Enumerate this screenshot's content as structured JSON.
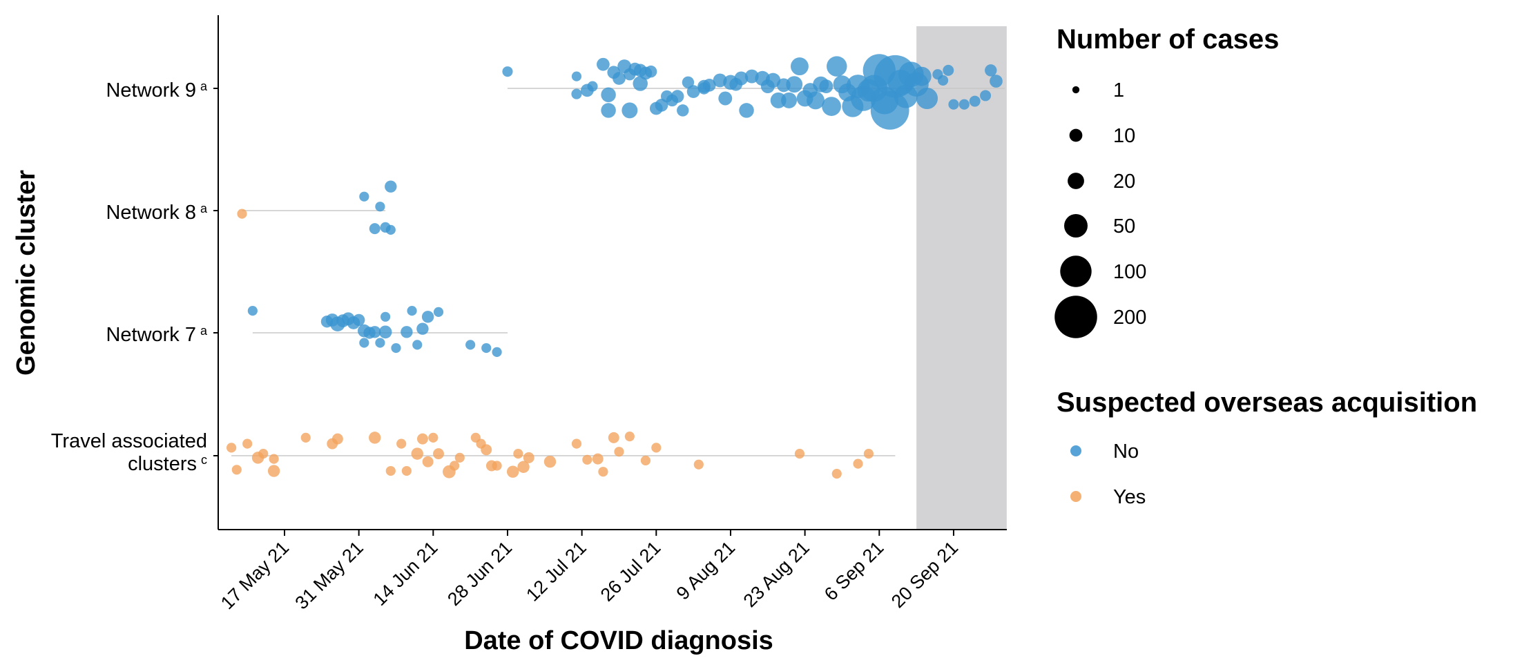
{
  "chart_data": {
    "type": "scatter",
    "xlabel": "Date of COVID diagnosis",
    "ylabel": "Genomic cluster",
    "x_ticks": [
      "17 May 21",
      "31 May 21",
      "14 Jun 21",
      "28 Jun 21",
      "12 Jul 21",
      "26 Jul 21",
      "9 Aug 21",
      "23 Aug 21",
      "6 Sep 21",
      "20 Sep 21"
    ],
    "xlim": [
      "2021-05-05",
      "2021-10-01"
    ],
    "categories": [
      {
        "label": "Network 9",
        "superscript": "a"
      },
      {
        "label": "Network 8",
        "superscript": "a"
      },
      {
        "label": "Network 7",
        "superscript": "a"
      },
      {
        "label": "Travel associated clusters",
        "superscript": "c"
      }
    ],
    "shaded_region": {
      "start": "2021-09-13",
      "end": "2021-09-30",
      "color": "#d3d3d5"
    },
    "size_legend": {
      "title": "Number of cases",
      "entries": [
        {
          "label": "1",
          "value": 1
        },
        {
          "label": "10",
          "value": 10
        },
        {
          "label": "20",
          "value": 20
        },
        {
          "label": "50",
          "value": 50
        },
        {
          "label": "100",
          "value": 100
        },
        {
          "label": "200",
          "value": 200
        }
      ]
    },
    "color_legend": {
      "title": "Suspected overseas acquisition",
      "entries": [
        {
          "label": "No",
          "color": "#3a93d0"
        },
        {
          "label": "Yes",
          "color": "#f2a35b"
        }
      ]
    },
    "series": [
      {
        "category": "Network 9",
        "acquisition": "No",
        "range": [
          "2021-06-28",
          "2021-09-30"
        ],
        "points": [
          [
            "2021-06-28",
            0.42,
            5
          ],
          [
            "2021-07-11",
            0.3,
            4
          ],
          [
            "2021-07-11",
            -0.14,
            5
          ],
          [
            "2021-07-13",
            -0.05,
            10
          ],
          [
            "2021-07-14",
            0.05,
            5
          ],
          [
            "2021-07-16",
            0.6,
            10
          ],
          [
            "2021-07-17",
            -0.16,
            15
          ],
          [
            "2021-07-17",
            -0.55,
            15
          ],
          [
            "2021-07-18",
            0.4,
            10
          ],
          [
            "2021-07-19",
            0.25,
            10
          ],
          [
            "2021-07-20",
            0.55,
            12
          ],
          [
            "2021-07-21",
            -0.55,
            18
          ],
          [
            "2021-07-21",
            0.35,
            8
          ],
          [
            "2021-07-22",
            0.48,
            10
          ],
          [
            "2021-07-23",
            0.12,
            15
          ],
          [
            "2021-07-23",
            0.45,
            10
          ],
          [
            "2021-07-24",
            0.38,
            10
          ],
          [
            "2021-07-25",
            0.42,
            8
          ],
          [
            "2021-07-26",
            -0.5,
            10
          ],
          [
            "2021-07-27",
            -0.42,
            10
          ],
          [
            "2021-07-28",
            -0.2,
            8
          ],
          [
            "2021-07-29",
            -0.3,
            8
          ],
          [
            "2021-07-30",
            -0.2,
            10
          ],
          [
            "2021-07-31",
            -0.55,
            8
          ],
          [
            "2021-08-01",
            0.15,
            8
          ],
          [
            "2021-08-02",
            -0.08,
            10
          ],
          [
            "2021-08-04",
            0.05,
            10
          ],
          [
            "2021-08-04",
            0.0,
            8
          ],
          [
            "2021-08-05",
            0.08,
            10
          ],
          [
            "2021-08-07",
            0.2,
            12
          ],
          [
            "2021-08-08",
            -0.25,
            12
          ],
          [
            "2021-08-09",
            0.15,
            15
          ],
          [
            "2021-08-10",
            0.1,
            10
          ],
          [
            "2021-08-11",
            0.25,
            12
          ],
          [
            "2021-08-12",
            -0.55,
            15
          ],
          [
            "2021-08-13",
            0.3,
            12
          ],
          [
            "2021-08-15",
            0.25,
            15
          ],
          [
            "2021-08-16",
            0.05,
            12
          ],
          [
            "2021-08-17",
            0.2,
            15
          ],
          [
            "2021-08-18",
            -0.3,
            18
          ],
          [
            "2021-08-19",
            0.08,
            12
          ],
          [
            "2021-08-20",
            -0.3,
            18
          ],
          [
            "2021-08-21",
            0.1,
            20
          ],
          [
            "2021-08-22",
            0.55,
            25
          ],
          [
            "2021-08-23",
            -0.25,
            20
          ],
          [
            "2021-08-24",
            -0.05,
            15
          ],
          [
            "2021-08-25",
            -0.3,
            25
          ],
          [
            "2021-08-26",
            0.1,
            18
          ],
          [
            "2021-08-27",
            0.05,
            12
          ],
          [
            "2021-08-28",
            -0.45,
            30
          ],
          [
            "2021-08-29",
            0.55,
            35
          ],
          [
            "2021-08-30",
            0.1,
            25
          ],
          [
            "2021-08-31",
            -0.1,
            25
          ],
          [
            "2021-09-01",
            -0.45,
            40
          ],
          [
            "2021-09-02",
            0.05,
            50
          ],
          [
            "2021-09-03",
            -0.25,
            60
          ],
          [
            "2021-09-04",
            -0.05,
            45
          ],
          [
            "2021-09-05",
            0.0,
            70
          ],
          [
            "2021-09-06",
            0.45,
            110
          ],
          [
            "2021-09-07",
            -0.3,
            75
          ],
          [
            "2021-09-08",
            -0.55,
            160
          ],
          [
            "2021-09-09",
            0.3,
            200
          ],
          [
            "2021-09-10",
            0.15,
            60
          ],
          [
            "2021-09-11",
            -0.2,
            50
          ],
          [
            "2021-09-12",
            0.35,
            60
          ],
          [
            "2021-09-13",
            0.1,
            55
          ],
          [
            "2021-09-14",
            0.3,
            30
          ],
          [
            "2021-09-15",
            -0.25,
            40
          ],
          [
            "2021-09-17",
            0.35,
            5
          ],
          [
            "2021-09-18",
            0.2,
            5
          ],
          [
            "2021-09-19",
            0.45,
            6
          ],
          [
            "2021-09-20",
            -0.4,
            5
          ],
          [
            "2021-09-22",
            -0.4,
            5
          ],
          [
            "2021-09-24",
            -0.32,
            6
          ],
          [
            "2021-09-26",
            -0.18,
            6
          ],
          [
            "2021-09-27",
            0.45,
            8
          ],
          [
            "2021-09-28",
            0.18,
            10
          ]
        ]
      },
      {
        "category": "Network 8",
        "acquisition": "Yes",
        "range": [
          "2021-05-09",
          "2021-06-05"
        ],
        "points": [
          [
            "2021-05-09",
            -0.08,
            4
          ]
        ]
      },
      {
        "category": "Network 8",
        "acquisition": "No",
        "range": [
          "2021-05-09",
          "2021-06-05"
        ],
        "points": [
          [
            "2021-06-01",
            0.35,
            4
          ],
          [
            "2021-06-03",
            -0.45,
            6
          ],
          [
            "2021-06-04",
            0.1,
            4
          ],
          [
            "2021-06-05",
            -0.42,
            5
          ],
          [
            "2021-06-06",
            0.6,
            8
          ],
          [
            "2021-06-06",
            -0.48,
            4
          ]
        ]
      },
      {
        "category": "Network 7",
        "acquisition": "No",
        "range": [
          "2021-05-11",
          "2021-06-28"
        ],
        "points": [
          [
            "2021-05-11",
            0.55,
            4
          ],
          [
            "2021-05-25",
            0.28,
            8
          ],
          [
            "2021-05-26",
            0.32,
            10
          ],
          [
            "2021-05-27",
            0.22,
            15
          ],
          [
            "2021-05-28",
            0.3,
            10
          ],
          [
            "2021-05-29",
            0.35,
            10
          ],
          [
            "2021-05-30",
            0.25,
            10
          ],
          [
            "2021-05-31",
            0.32,
            8
          ],
          [
            "2021-06-01",
            0.05,
            10
          ],
          [
            "2021-06-01",
            -0.25,
            4
          ],
          [
            "2021-06-02",
            0.0,
            8
          ],
          [
            "2021-06-03",
            0.02,
            8
          ],
          [
            "2021-06-04",
            -0.25,
            4
          ],
          [
            "2021-06-05",
            0.02,
            10
          ],
          [
            "2021-06-05",
            0.4,
            4
          ],
          [
            "2021-06-07",
            -0.38,
            4
          ],
          [
            "2021-06-09",
            0.02,
            8
          ],
          [
            "2021-06-10",
            0.55,
            4
          ],
          [
            "2021-06-11",
            -0.3,
            4
          ],
          [
            "2021-06-12",
            0.1,
            8
          ],
          [
            "2021-06-13",
            0.4,
            8
          ],
          [
            "2021-06-15",
            0.52,
            4
          ],
          [
            "2021-06-21",
            -0.3,
            4
          ],
          [
            "2021-06-24",
            -0.38,
            4
          ],
          [
            "2021-06-26",
            -0.48,
            4
          ]
        ]
      },
      {
        "category": "Travel associated clusters",
        "acquisition": "Yes",
        "range": [
          "2021-05-07",
          "2021-09-09"
        ],
        "points": [
          [
            "2021-05-07",
            0.2,
            4
          ],
          [
            "2021-05-08",
            -0.35,
            4
          ],
          [
            "2021-05-10",
            0.3,
            4
          ],
          [
            "2021-05-12",
            -0.05,
            8
          ],
          [
            "2021-05-13",
            0.05,
            4
          ],
          [
            "2021-05-15",
            -0.38,
            8
          ],
          [
            "2021-05-15",
            -0.08,
            4
          ],
          [
            "2021-05-21",
            0.45,
            4
          ],
          [
            "2021-05-26",
            0.3,
            6
          ],
          [
            "2021-05-27",
            0.42,
            6
          ],
          [
            "2021-06-03",
            0.45,
            8
          ],
          [
            "2021-06-06",
            -0.38,
            4
          ],
          [
            "2021-06-08",
            0.3,
            4
          ],
          [
            "2021-06-09",
            -0.38,
            4
          ],
          [
            "2021-06-11",
            0.05,
            8
          ],
          [
            "2021-06-12",
            0.42,
            6
          ],
          [
            "2021-06-13",
            -0.15,
            6
          ],
          [
            "2021-06-14",
            0.45,
            4
          ],
          [
            "2021-06-15",
            0.05,
            6
          ],
          [
            "2021-06-17",
            -0.4,
            10
          ],
          [
            "2021-06-18",
            -0.25,
            4
          ],
          [
            "2021-06-19",
            -0.05,
            4
          ],
          [
            "2021-06-22",
            0.45,
            4
          ],
          [
            "2021-06-23",
            0.3,
            4
          ],
          [
            "2021-06-24",
            0.15,
            6
          ],
          [
            "2021-06-25",
            -0.25,
            6
          ],
          [
            "2021-06-26",
            -0.25,
            4
          ],
          [
            "2021-06-29",
            -0.4,
            8
          ],
          [
            "2021-06-30",
            0.05,
            4
          ],
          [
            "2021-07-01",
            -0.28,
            8
          ],
          [
            "2021-07-02",
            -0.05,
            6
          ],
          [
            "2021-07-06",
            -0.15,
            8
          ],
          [
            "2021-07-11",
            0.3,
            4
          ],
          [
            "2021-07-13",
            -0.1,
            4
          ],
          [
            "2021-07-15",
            -0.08,
            6
          ],
          [
            "2021-07-16",
            -0.4,
            4
          ],
          [
            "2021-07-18",
            0.45,
            6
          ],
          [
            "2021-07-19",
            0.1,
            4
          ],
          [
            "2021-07-21",
            0.48,
            4
          ],
          [
            "2021-07-24",
            -0.12,
            4
          ],
          [
            "2021-07-26",
            0.2,
            4
          ],
          [
            "2021-08-03",
            -0.22,
            4
          ],
          [
            "2021-08-22",
            0.05,
            4
          ],
          [
            "2021-08-29",
            -0.45,
            4
          ],
          [
            "2021-09-02",
            -0.2,
            4
          ],
          [
            "2021-09-04",
            0.05,
            4
          ]
        ]
      }
    ]
  }
}
